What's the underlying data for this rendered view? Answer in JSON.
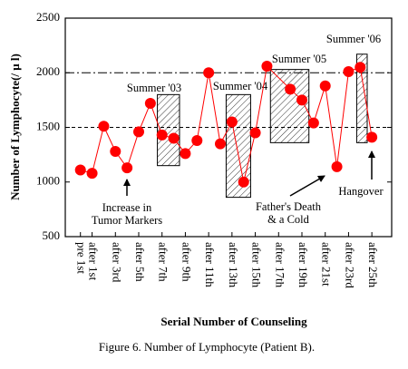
{
  "chart_data": {
    "type": "line",
    "y_label": "Number of Lymphocyte(/ μ l)",
    "x_label": "Serial Number of Counseling",
    "caption": "Figure 6. Number of Lymphocyte (Patient B).",
    "x": [
      0,
      1,
      2,
      3,
      4,
      5,
      6,
      7,
      8,
      9,
      10,
      11,
      12,
      13,
      14,
      15,
      16,
      18,
      19,
      20,
      21,
      22,
      23,
      24,
      25
    ],
    "series": [
      {
        "color": "#ff0000",
        "values": [
          1110,
          1080,
          1510,
          1280,
          1130,
          1460,
          1720,
          1430,
          1400,
          1260,
          1380,
          2000,
          1350,
          1550,
          1000,
          1450,
          2060,
          1850,
          1750,
          1540,
          1880,
          1140,
          2010,
          2050,
          1410
        ]
      }
    ],
    "xlim": [
      -1.3,
      26.7
    ],
    "xticks": [
      {
        "value": 0,
        "label": "pre 1st"
      },
      {
        "value": 1,
        "label": "after 1st"
      },
      {
        "value": 3,
        "label": "after 3rd"
      },
      {
        "value": 5,
        "label": "after 5th"
      },
      {
        "value": 7,
        "label": "after 7th"
      },
      {
        "value": 9,
        "label": "after 9th"
      },
      {
        "value": 11,
        "label": "after 11th"
      },
      {
        "value": 13,
        "label": "after 13th"
      },
      {
        "value": 15,
        "label": "after 15th"
      },
      {
        "value": 17,
        "label": "after 17th"
      },
      {
        "value": 19,
        "label": "after 19th"
      },
      {
        "value": 21,
        "label": "after 21st"
      },
      {
        "value": 23,
        "label": "after 23rd"
      },
      {
        "value": 25,
        "label": "after 25th"
      }
    ],
    "ylim": [
      500,
      2500
    ],
    "yticks": [
      500,
      1000,
      1500,
      2000,
      2500
    ],
    "hlines": [
      {
        "value": 2000,
        "style": "dashdot"
      },
      {
        "value": 1500,
        "style": "dashed"
      }
    ],
    "periods": [
      {
        "label": "Summer '03",
        "x_range": [
          6.6,
          8.5
        ],
        "y_range": [
          1150,
          1800
        ]
      },
      {
        "label": "Summer '04",
        "x_range": [
          12.5,
          14.6
        ],
        "y_range": [
          860,
          1800
        ]
      },
      {
        "label": "Summer '05",
        "x_range": [
          16.3,
          19.6
        ],
        "y_range": [
          1360,
          2030
        ]
      },
      {
        "label": "Summer '06",
        "x_range": [
          23.7,
          24.6
        ],
        "y_range": [
          1360,
          2170
        ]
      }
    ],
    "annotations": [
      {
        "lines": [
          "Increase in",
          "Tumor Markers"
        ]
      },
      {
        "lines": [
          "Father's Death",
          "& a Cold"
        ]
      },
      {
        "lines": [
          "Hangover"
        ]
      }
    ]
  }
}
